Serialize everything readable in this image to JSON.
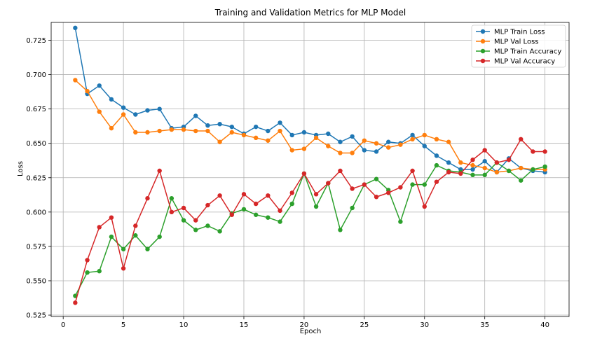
{
  "chart_data": {
    "type": "line",
    "title": "Training and Validation Metrics for MLP Model",
    "xlabel": "Epoch",
    "ylabel": "Loss",
    "xlim": [
      -1,
      42
    ],
    "ylim": [
      0.524,
      0.738
    ],
    "xticks": [
      0,
      5,
      10,
      15,
      20,
      25,
      30,
      35,
      40
    ],
    "yticks": [
      0.525,
      0.55,
      0.575,
      0.6,
      0.625,
      0.65,
      0.675,
      0.7,
      0.725
    ],
    "ytick_labels": [
      "0.525",
      "0.550",
      "0.575",
      "0.600",
      "0.625",
      "0.650",
      "0.675",
      "0.700",
      "0.725"
    ],
    "grid": true,
    "legend_position": "top-right",
    "x": [
      1,
      2,
      3,
      4,
      5,
      6,
      7,
      8,
      9,
      10,
      11,
      12,
      13,
      14,
      15,
      16,
      17,
      18,
      19,
      20,
      21,
      22,
      23,
      24,
      25,
      26,
      27,
      28,
      29,
      30,
      31,
      32,
      33,
      34,
      35,
      36,
      37,
      38,
      39,
      40
    ],
    "series": [
      {
        "name": "MLP Train Loss",
        "color": "#1f77b4",
        "values": [
          0.734,
          0.686,
          0.692,
          0.682,
          0.676,
          0.671,
          0.674,
          0.675,
          0.661,
          0.662,
          0.67,
          0.663,
          0.664,
          0.662,
          0.657,
          0.662,
          0.659,
          0.665,
          0.656,
          0.658,
          0.656,
          0.657,
          0.651,
          0.655,
          0.645,
          0.644,
          0.651,
          0.65,
          0.656,
          0.648,
          0.641,
          0.636,
          0.631,
          0.631,
          0.637,
          0.629,
          0.639,
          0.632,
          0.63,
          0.629
        ]
      },
      {
        "name": "MLP Val Loss",
        "color": "#ff7f0e",
        "values": [
          0.696,
          0.688,
          0.673,
          0.661,
          0.671,
          0.658,
          0.658,
          0.659,
          0.66,
          0.66,
          0.659,
          0.659,
          0.651,
          0.658,
          0.656,
          0.654,
          0.652,
          0.659,
          0.645,
          0.646,
          0.654,
          0.648,
          0.643,
          0.643,
          0.652,
          0.65,
          0.647,
          0.649,
          0.653,
          0.656,
          0.653,
          0.651,
          0.636,
          0.634,
          0.632,
          0.629,
          0.63,
          0.632,
          0.631,
          0.631
        ]
      },
      {
        "name": "MLP Train Accuracy",
        "color": "#2ca02c",
        "values": [
          0.539,
          0.556,
          0.557,
          0.582,
          0.573,
          0.583,
          0.573,
          0.582,
          0.61,
          0.594,
          0.587,
          0.59,
          0.586,
          0.599,
          0.602,
          0.598,
          0.596,
          0.593,
          0.606,
          0.628,
          0.604,
          0.621,
          0.587,
          0.603,
          0.62,
          0.624,
          0.616,
          0.593,
          0.62,
          0.62,
          0.634,
          0.63,
          0.629,
          0.627,
          0.627,
          0.636,
          0.63,
          0.623,
          0.631,
          0.633
        ]
      },
      {
        "name": "MLP Val Accuracy",
        "color": "#d62728",
        "values": [
          0.534,
          0.565,
          0.589,
          0.596,
          0.559,
          0.59,
          0.61,
          0.63,
          0.6,
          0.603,
          0.594,
          0.605,
          0.612,
          0.598,
          0.613,
          0.606,
          0.612,
          0.601,
          0.614,
          0.628,
          0.613,
          0.621,
          0.63,
          0.617,
          0.62,
          0.611,
          0.614,
          0.618,
          0.63,
          0.604,
          0.622,
          0.629,
          0.628,
          0.638,
          0.645,
          0.636,
          0.638,
          0.653,
          0.644,
          0.644
        ]
      }
    ]
  }
}
